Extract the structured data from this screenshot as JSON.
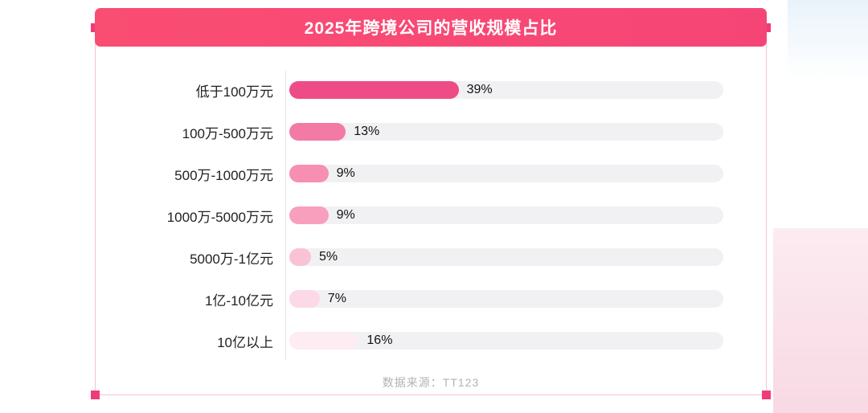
{
  "header": {
    "title": "2025年跨境公司的营收规模占比"
  },
  "source_text": "数据来源：TT123",
  "chart_data": {
    "type": "bar",
    "orientation": "horizontal",
    "title": "2025年跨境公司的营收规模占比",
    "categories": [
      "低于100万元",
      "100万-500万元",
      "500万-1000万元",
      "1000万-5000万元",
      "5000万-1亿元",
      "1亿-10亿元",
      "10亿以上"
    ],
    "values": [
      39,
      13,
      9,
      9,
      5,
      7,
      16
    ],
    "value_labels": [
      "39%",
      "13%",
      "9%",
      "9%",
      "5%",
      "7%",
      "16%"
    ],
    "bar_colors": [
      "#ee4c86",
      "#f37aa4",
      "#f78fb2",
      "#f89fbd",
      "#fac2d6",
      "#fcd9e6",
      "#fdecf2"
    ],
    "track_color": "#f1f1f3",
    "xlim": [
      0,
      100
    ],
    "legend": "none",
    "grid": "off",
    "accent_color": "#f54577",
    "source": "数据来源：TT123"
  }
}
